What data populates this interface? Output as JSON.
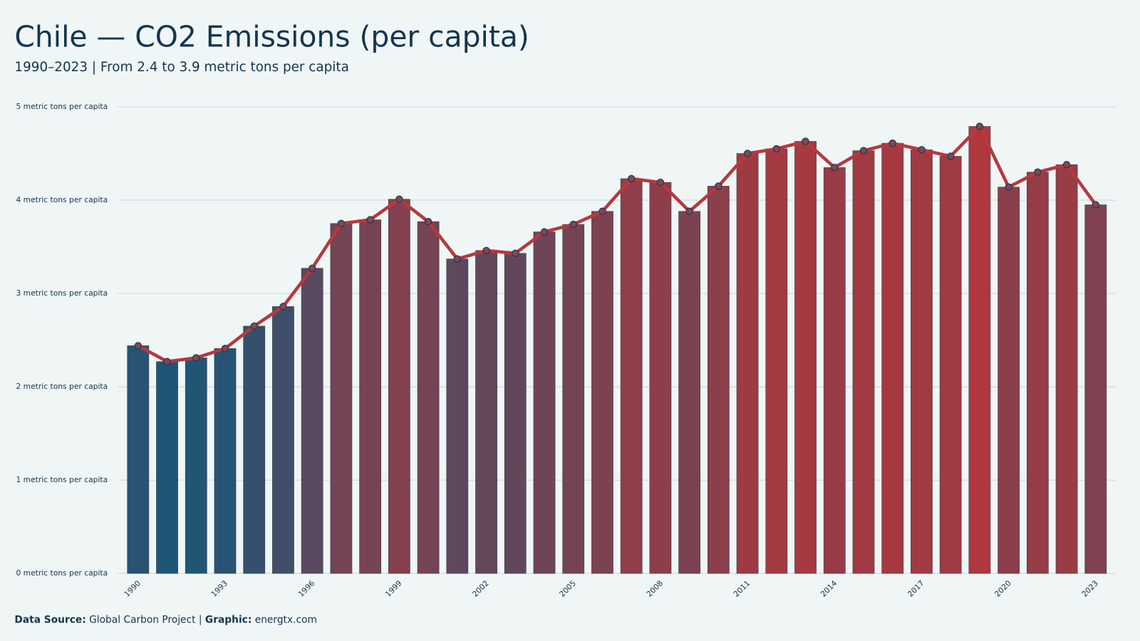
{
  "chart_data": {
    "type": "bar",
    "title": "Chile — CO2 Emissions (per capita)",
    "subtitle": "1990–2023 | From 2.4 to 3.9 metric tons per capita",
    "x": [
      1990,
      1991,
      1992,
      1993,
      1994,
      1995,
      1996,
      1997,
      1998,
      1999,
      2000,
      2001,
      2002,
      2003,
      2004,
      2005,
      2006,
      2007,
      2008,
      2009,
      2010,
      2011,
      2012,
      2013,
      2014,
      2015,
      2016,
      2017,
      2018,
      2019,
      2020,
      2021,
      2022,
      2023
    ],
    "values": [
      2.44,
      2.27,
      2.31,
      2.41,
      2.65,
      2.86,
      3.27,
      3.75,
      3.79,
      4.01,
      3.77,
      3.37,
      3.46,
      3.43,
      3.66,
      3.74,
      3.88,
      4.23,
      4.19,
      3.88,
      4.15,
      4.5,
      4.55,
      4.63,
      4.35,
      4.53,
      4.61,
      4.54,
      4.47,
      4.79,
      4.14,
      4.3,
      4.38,
      3.95
    ],
    "bar_colors": [
      "#1f5577",
      "#b0373c"
    ],
    "line_color": "#b5393e",
    "xlim": [
      1989.3,
      2023.7
    ],
    "xticks": [
      1990,
      1993,
      1996,
      1999,
      2002,
      2005,
      2008,
      2011,
      2014,
      2017,
      2020,
      2023
    ],
    "ylim": [
      0,
      5
    ],
    "yticks": [
      {
        "value": 0,
        "label": "0 metric tons per capita"
      },
      {
        "value": 1,
        "label": "1 metric tons per capita"
      },
      {
        "value": 2,
        "label": "2 metric tons per capita"
      },
      {
        "value": 3,
        "label": "3 metric tons per capita"
      },
      {
        "value": 4,
        "label": "4 metric tons per capita"
      },
      {
        "value": 5,
        "label": "5 metric tons per capita"
      }
    ],
    "grid": true
  },
  "footer": {
    "source_label": "Data Source:",
    "source": "Global Carbon Project",
    "separator": "|",
    "graphic_label": "Graphic:",
    "graphic": "energtx.com"
  }
}
